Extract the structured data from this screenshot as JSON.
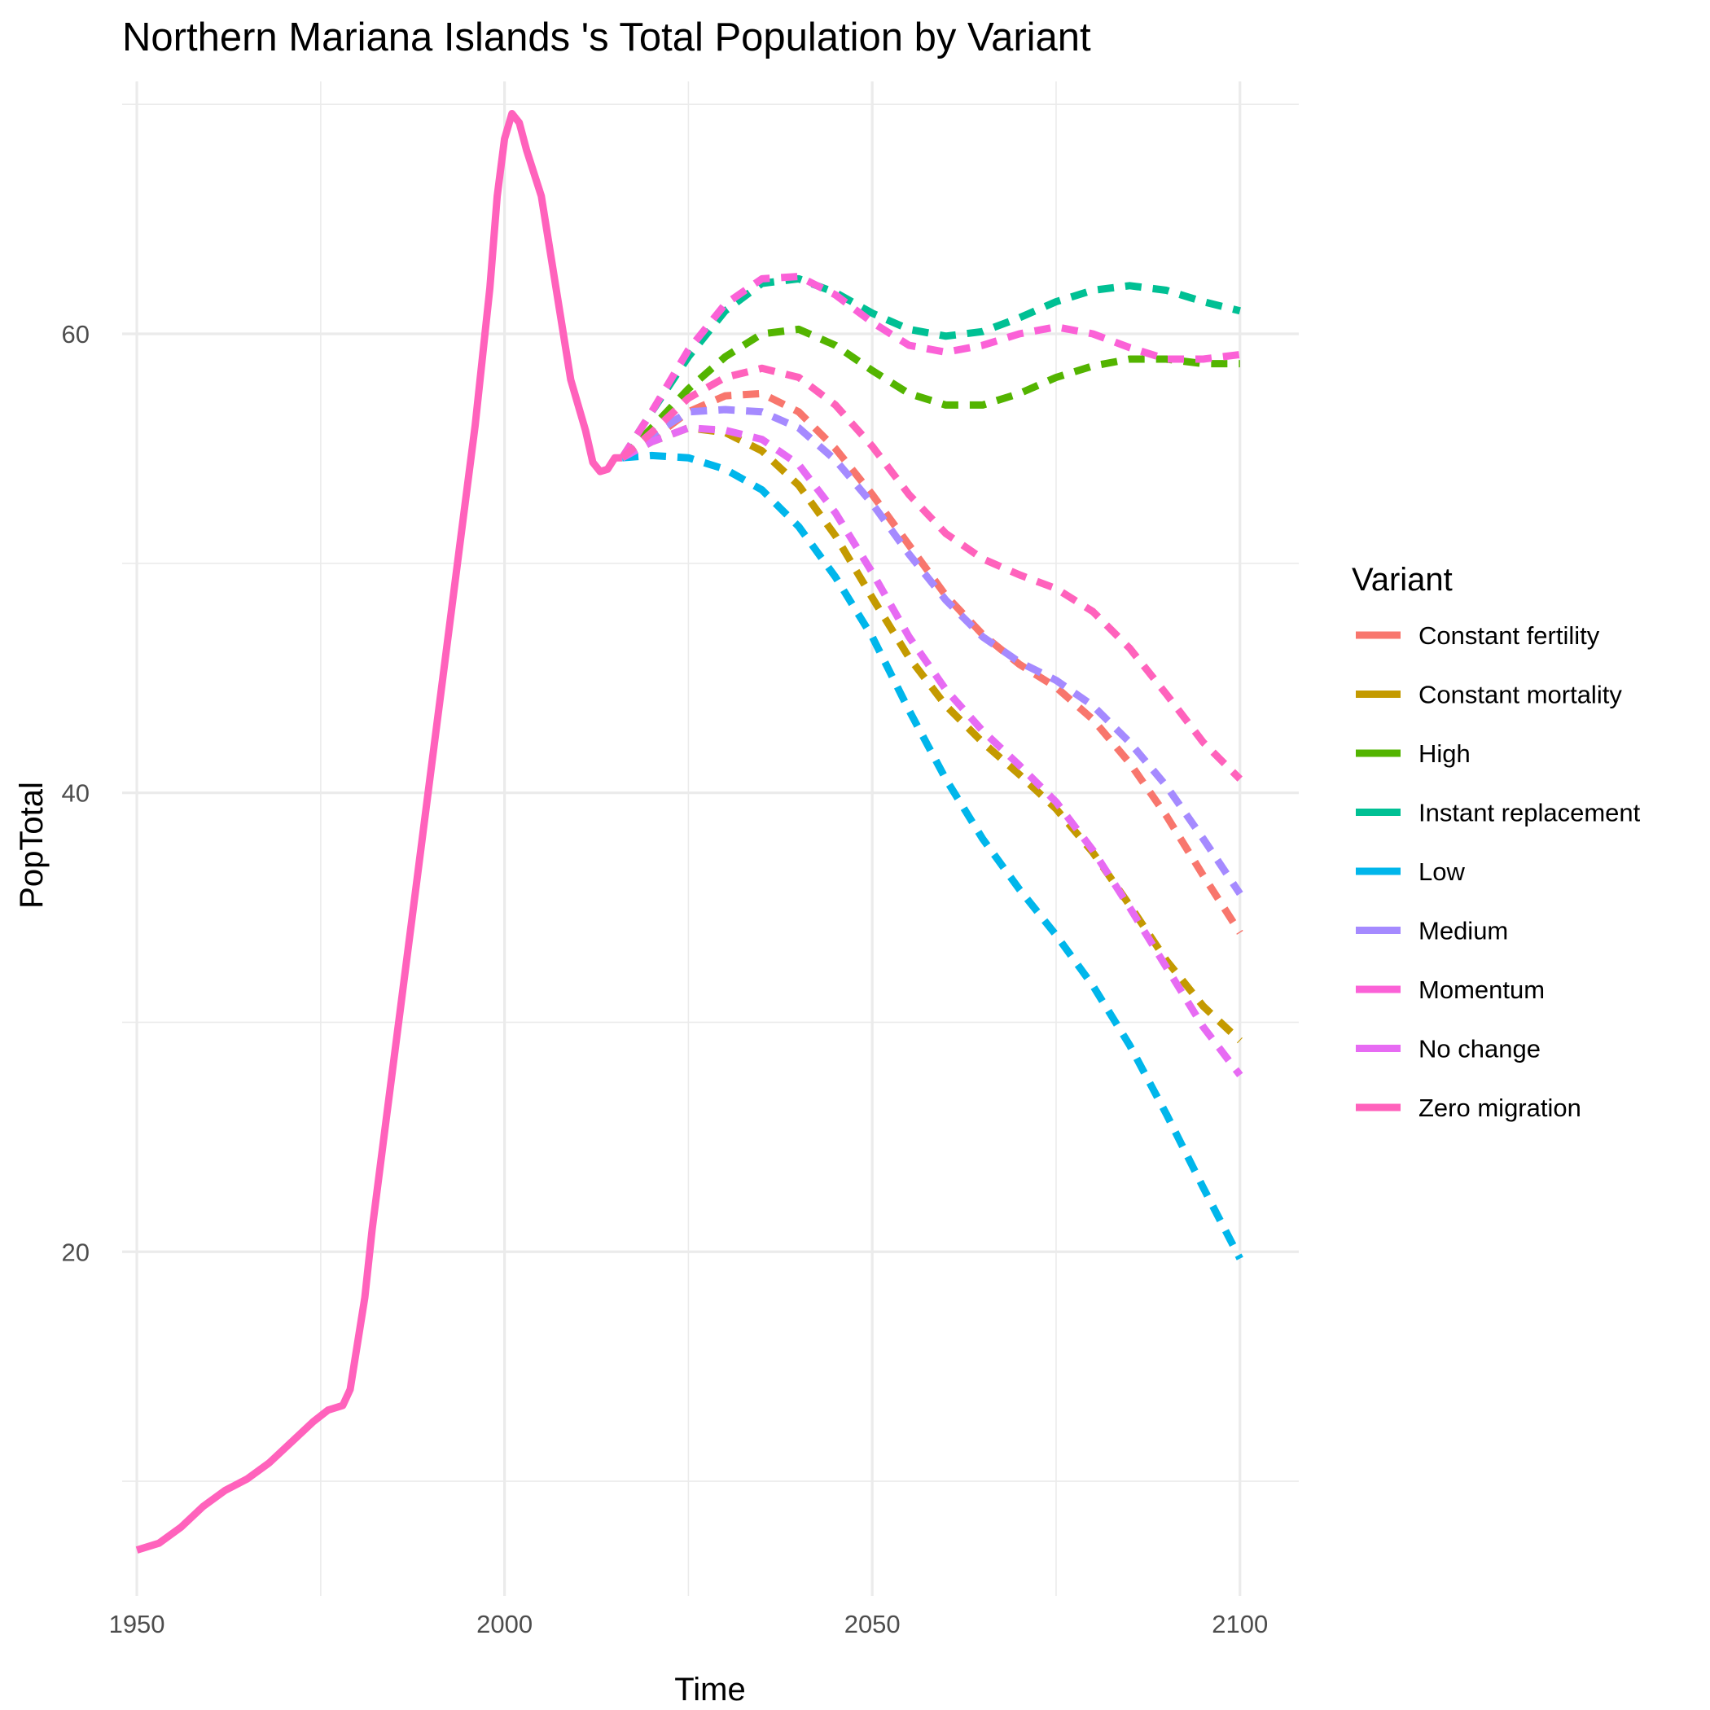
{
  "chart_data": {
    "type": "line",
    "title": "Northern Mariana Islands 's Total Population by Variant",
    "xlabel": "Time",
    "ylabel": "PopTotal",
    "xlim": [
      1948,
      2108
    ],
    "ylim": [
      5,
      71
    ],
    "x_ticks": [
      1950,
      2000,
      2050,
      2100
    ],
    "x_minor_ticks": [
      1975,
      2025,
      2075
    ],
    "y_ticks": [
      20,
      40,
      60
    ],
    "y_minor_ticks": [
      10,
      30,
      50,
      70
    ],
    "grid": true,
    "legend": {
      "title": "Variant",
      "position": "right"
    },
    "series": [
      {
        "name": "Constant fertility",
        "color": "#F8766D",
        "dash": true,
        "points": [
          [
            2016,
            54.6
          ],
          [
            2020,
            55.4
          ],
          [
            2025,
            56.6
          ],
          [
            2030,
            57.3
          ],
          [
            2035,
            57.4
          ],
          [
            2040,
            56.6
          ],
          [
            2045,
            55.0
          ],
          [
            2050,
            53.0
          ],
          [
            2055,
            50.8
          ],
          [
            2060,
            48.6
          ],
          [
            2065,
            46.9
          ],
          [
            2070,
            45.6
          ],
          [
            2075,
            44.6
          ],
          [
            2080,
            43.2
          ],
          [
            2085,
            41.3
          ],
          [
            2090,
            39.0
          ],
          [
            2095,
            36.4
          ],
          [
            2100,
            33.9
          ]
        ]
      },
      {
        "name": "Constant mortality",
        "color": "#C49A00",
        "dash": true,
        "points": [
          [
            2016,
            54.6
          ],
          [
            2020,
            55.3
          ],
          [
            2025,
            55.9
          ],
          [
            2030,
            55.7
          ],
          [
            2035,
            54.9
          ],
          [
            2040,
            53.4
          ],
          [
            2045,
            51.2
          ],
          [
            2050,
            48.5
          ],
          [
            2055,
            45.9
          ],
          [
            2060,
            43.8
          ],
          [
            2065,
            42.2
          ],
          [
            2070,
            40.8
          ],
          [
            2075,
            39.3
          ],
          [
            2080,
            37.4
          ],
          [
            2085,
            35.1
          ],
          [
            2090,
            32.7
          ],
          [
            2095,
            30.7
          ],
          [
            2100,
            29.2
          ]
        ]
      },
      {
        "name": "High",
        "color": "#53B400",
        "dash": true,
        "points": [
          [
            2016,
            54.6
          ],
          [
            2020,
            55.9
          ],
          [
            2025,
            57.6
          ],
          [
            2030,
            59.0
          ],
          [
            2035,
            60.0
          ],
          [
            2040,
            60.2
          ],
          [
            2045,
            59.5
          ],
          [
            2050,
            58.4
          ],
          [
            2055,
            57.4
          ],
          [
            2060,
            56.9
          ],
          [
            2065,
            56.9
          ],
          [
            2070,
            57.4
          ],
          [
            2075,
            58.1
          ],
          [
            2080,
            58.6
          ],
          [
            2085,
            58.9
          ],
          [
            2090,
            58.9
          ],
          [
            2095,
            58.7
          ],
          [
            2100,
            58.7
          ]
        ]
      },
      {
        "name": "Instant replacement",
        "color": "#00C094",
        "dash": true,
        "points": [
          [
            2016,
            54.6
          ],
          [
            2020,
            56.6
          ],
          [
            2025,
            59.0
          ],
          [
            2030,
            61.0
          ],
          [
            2035,
            62.2
          ],
          [
            2040,
            62.4
          ],
          [
            2045,
            61.8
          ],
          [
            2050,
            60.9
          ],
          [
            2055,
            60.2
          ],
          [
            2060,
            59.9
          ],
          [
            2065,
            60.1
          ],
          [
            2070,
            60.7
          ],
          [
            2075,
            61.4
          ],
          [
            2080,
            61.9
          ],
          [
            2085,
            62.1
          ],
          [
            2090,
            61.9
          ],
          [
            2095,
            61.4
          ],
          [
            2100,
            61.0
          ]
        ]
      },
      {
        "name": "Low",
        "color": "#00B6EB",
        "dash": true,
        "points": [
          [
            2016,
            54.6
          ],
          [
            2020,
            54.7
          ],
          [
            2025,
            54.6
          ],
          [
            2030,
            54.1
          ],
          [
            2035,
            53.2
          ],
          [
            2040,
            51.6
          ],
          [
            2045,
            49.4
          ],
          [
            2050,
            46.8
          ],
          [
            2055,
            43.6
          ],
          [
            2060,
            40.6
          ],
          [
            2065,
            38.0
          ],
          [
            2070,
            35.8
          ],
          [
            2075,
            33.8
          ],
          [
            2080,
            31.6
          ],
          [
            2085,
            29.0
          ],
          [
            2090,
            26.0
          ],
          [
            2095,
            22.8
          ],
          [
            2100,
            19.7
          ]
        ]
      },
      {
        "name": "Medium",
        "color": "#A58AFF",
        "dash": true,
        "points": [
          [
            2016,
            54.6
          ],
          [
            2020,
            55.6
          ],
          [
            2025,
            56.6
          ],
          [
            2030,
            56.7
          ],
          [
            2035,
            56.6
          ],
          [
            2040,
            55.9
          ],
          [
            2045,
            54.5
          ],
          [
            2050,
            52.6
          ],
          [
            2055,
            50.4
          ],
          [
            2060,
            48.4
          ],
          [
            2065,
            46.8
          ],
          [
            2070,
            45.7
          ],
          [
            2075,
            44.9
          ],
          [
            2080,
            43.8
          ],
          [
            2085,
            42.2
          ],
          [
            2090,
            40.3
          ],
          [
            2095,
            38.0
          ],
          [
            2100,
            35.6
          ]
        ]
      },
      {
        "name": "Momentum",
        "color": "#FB61D7",
        "dash": true,
        "points": [
          [
            2016,
            54.6
          ],
          [
            2020,
            56.6
          ],
          [
            2025,
            59.3
          ],
          [
            2030,
            61.3
          ],
          [
            2035,
            62.4
          ],
          [
            2040,
            62.5
          ],
          [
            2045,
            61.7
          ],
          [
            2050,
            60.5
          ],
          [
            2055,
            59.5
          ],
          [
            2060,
            59.2
          ],
          [
            2065,
            59.5
          ],
          [
            2070,
            60.0
          ],
          [
            2075,
            60.3
          ],
          [
            2080,
            60.0
          ],
          [
            2085,
            59.4
          ],
          [
            2090,
            58.9
          ],
          [
            2095,
            58.9
          ],
          [
            2100,
            59.1
          ]
        ]
      },
      {
        "name": "No change",
        "color": "#E76BF3",
        "dash": true,
        "points": [
          [
            2016,
            54.6
          ],
          [
            2020,
            55.3
          ],
          [
            2025,
            55.9
          ],
          [
            2030,
            55.8
          ],
          [
            2035,
            55.4
          ],
          [
            2040,
            54.3
          ],
          [
            2045,
            52.2
          ],
          [
            2050,
            49.6
          ],
          [
            2055,
            46.8
          ],
          [
            2060,
            44.5
          ],
          [
            2065,
            42.7
          ],
          [
            2070,
            41.2
          ],
          [
            2075,
            39.6
          ],
          [
            2080,
            37.5
          ],
          [
            2085,
            35.0
          ],
          [
            2090,
            32.4
          ],
          [
            2095,
            29.8
          ],
          [
            2100,
            27.7
          ]
        ]
      },
      {
        "name": "Zero migration",
        "color": "#FF62BC",
        "dash": true,
        "points": [
          [
            2016,
            54.6
          ],
          [
            2020,
            55.7
          ],
          [
            2025,
            57.2
          ],
          [
            2030,
            58.1
          ],
          [
            2035,
            58.5
          ],
          [
            2040,
            58.1
          ],
          [
            2045,
            56.9
          ],
          [
            2050,
            55.1
          ],
          [
            2055,
            53.0
          ],
          [
            2060,
            51.3
          ],
          [
            2065,
            50.2
          ],
          [
            2070,
            49.5
          ],
          [
            2075,
            48.9
          ],
          [
            2080,
            47.9
          ],
          [
            2085,
            46.3
          ],
          [
            2090,
            44.3
          ],
          [
            2095,
            42.2
          ],
          [
            2100,
            40.6
          ]
        ]
      },
      {
        "name": "",
        "color": "#FF62BC",
        "dash": false,
        "legend": false,
        "points": [
          [
            1950,
            7.0
          ],
          [
            1953,
            7.3
          ],
          [
            1956,
            8.0
          ],
          [
            1959,
            8.9
          ],
          [
            1962,
            9.6
          ],
          [
            1965,
            10.1
          ],
          [
            1968,
            10.8
          ],
          [
            1971,
            11.7
          ],
          [
            1974,
            12.6
          ],
          [
            1976,
            13.1
          ],
          [
            1978,
            13.3
          ],
          [
            1979,
            14.0
          ],
          [
            1980,
            16.0
          ],
          [
            1981,
            18.0
          ],
          [
            1982,
            21.0
          ],
          [
            1984,
            26.0
          ],
          [
            1986,
            31.0
          ],
          [
            1988,
            36.0
          ],
          [
            1990,
            41.0
          ],
          [
            1992,
            46.0
          ],
          [
            1994,
            51.0
          ],
          [
            1996,
            56.0
          ],
          [
            1998,
            62.0
          ],
          [
            1999,
            66.0
          ],
          [
            2000,
            68.5
          ],
          [
            2001,
            69.6
          ],
          [
            2002,
            69.2
          ],
          [
            2003,
            68.0
          ],
          [
            2005,
            66.0
          ],
          [
            2007,
            62.0
          ],
          [
            2009,
            58.0
          ],
          [
            2011,
            55.8
          ],
          [
            2012,
            54.4
          ],
          [
            2013,
            54.0
          ],
          [
            2014,
            54.1
          ],
          [
            2015,
            54.6
          ],
          [
            2016,
            54.6
          ]
        ]
      }
    ]
  }
}
